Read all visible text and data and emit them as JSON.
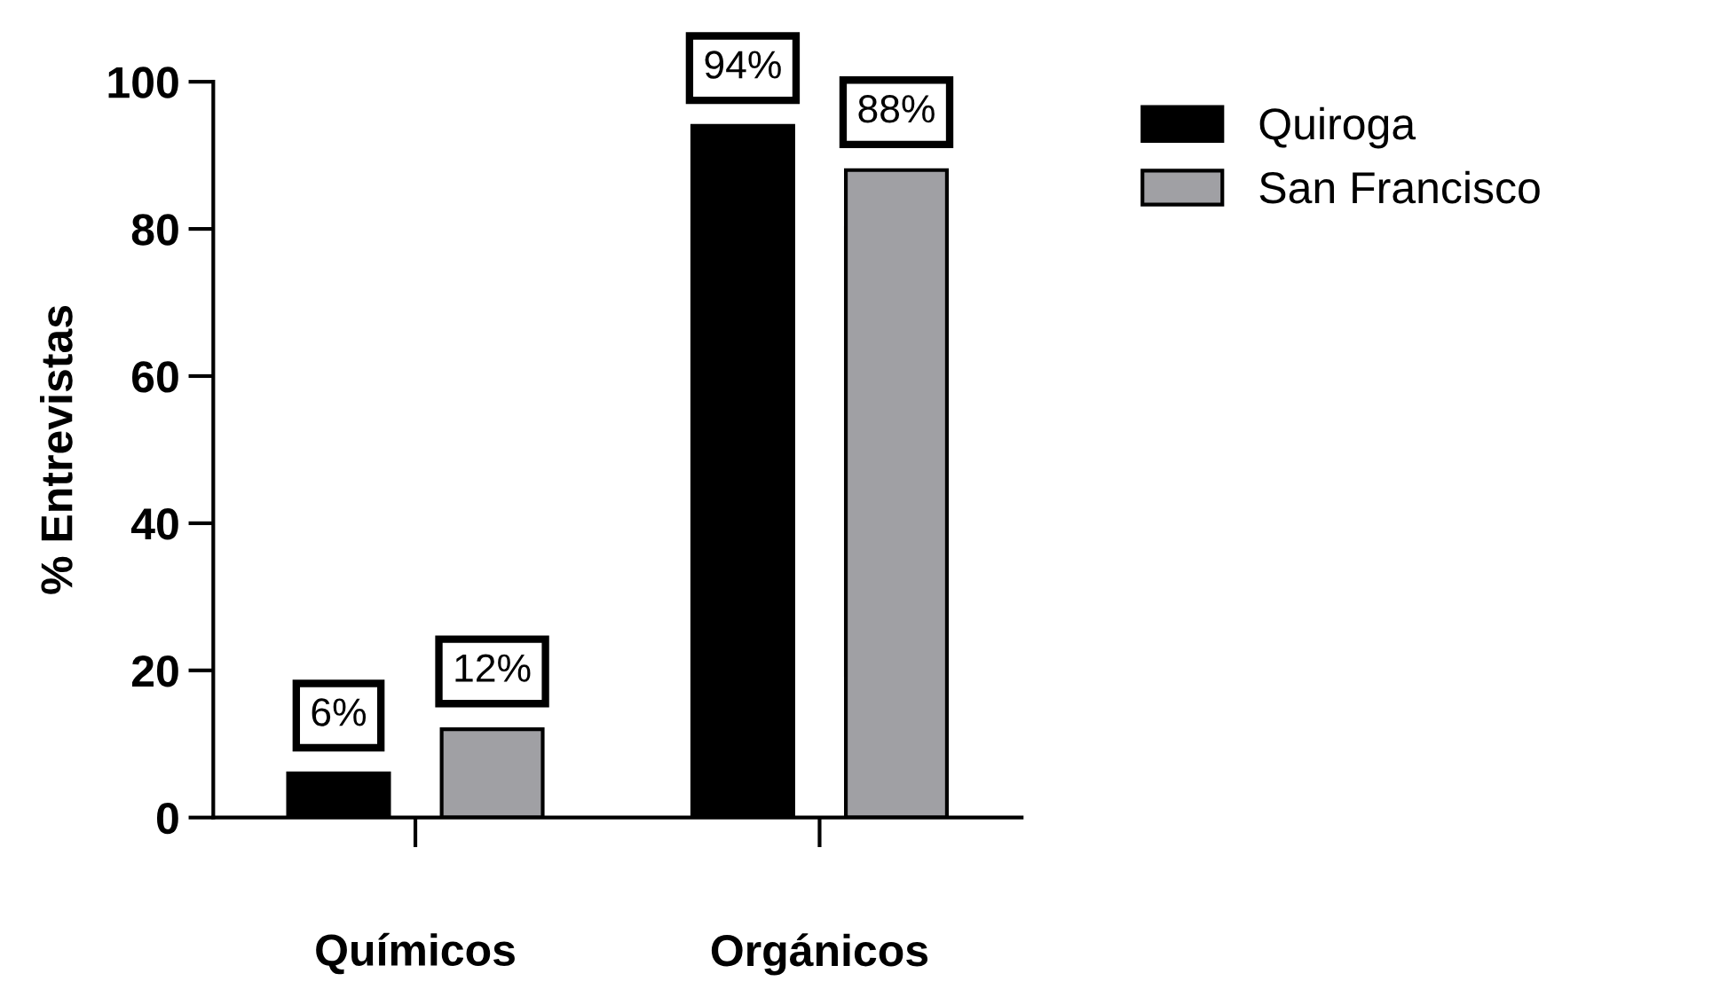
{
  "chart_data": {
    "type": "bar",
    "ylabel": "% Entrevistas",
    "categories": [
      "Químicos",
      "Orgánicos"
    ],
    "series": [
      {
        "name": "Quiroga",
        "color": "#000000",
        "values": [
          6,
          94
        ],
        "value_labels": [
          "6%",
          "94%"
        ]
      },
      {
        "name": "San Francisco",
        "color": "#a0a0a4",
        "values": [
          12,
          88
        ],
        "value_labels": [
          "12%",
          "88%"
        ]
      }
    ],
    "ylim": [
      0,
      100
    ],
    "yticks": [
      0,
      20,
      40,
      60,
      80,
      100
    ],
    "grid": false,
    "legend": "top right"
  }
}
